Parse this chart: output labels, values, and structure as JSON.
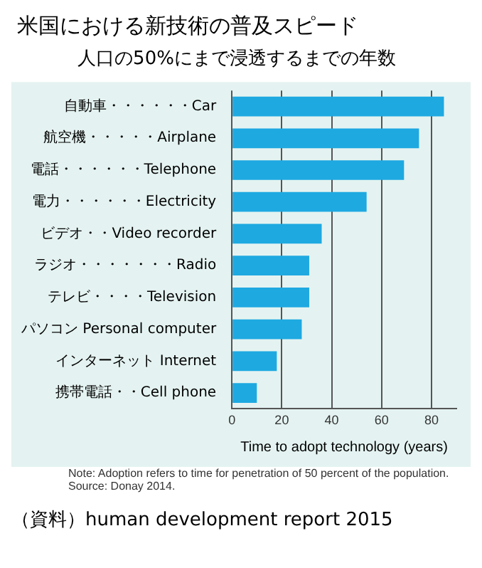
{
  "chart_data": {
    "type": "bar",
    "orientation": "horizontal",
    "title": "米国における新技術の普及スピード",
    "subtitle": "人口の50%にまで浸透するまでの年数",
    "xlabel": "Time to adopt technology (years)",
    "categories": [
      "自動車・・・・・・Car",
      "航空機・・・・・Airplane",
      "電話・・・・・・Telephone",
      "電力・・・・・・Electricity",
      "ビデオ・・Video recorder",
      "ラジオ・・・・・・・Radio",
      "テレビ・・・・Television",
      "パソコン Personal computer",
      "インターネット Internet",
      "携帯電話・・Cell phone"
    ],
    "values": [
      85,
      75,
      69,
      54,
      36,
      31,
      31,
      28,
      18,
      10
    ],
    "color": "#1ea9e1",
    "xlim": [
      0,
      90
    ],
    "xticks": [
      0,
      20,
      40,
      60,
      80
    ],
    "grid": "x",
    "legend": false,
    "annotations": [
      "Note: Adoption refers to time for penetration of 50 percent of the population.",
      "Source: Donay 2014.",
      "（資料）human development report 2015"
    ]
  }
}
